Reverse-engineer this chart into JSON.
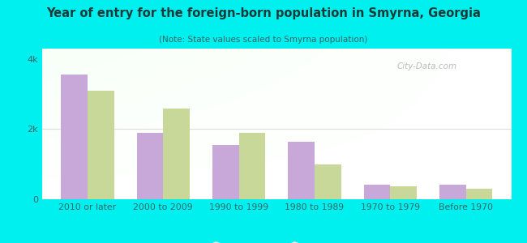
{
  "title": "Year of entry for the foreign-born population in Smyrna, Georgia",
  "subtitle": "(Note: State values scaled to Smyrna population)",
  "categories": [
    "2010 or later",
    "2000 to 2009",
    "1990 to 1999",
    "1980 to 1989",
    "1970 to 1979",
    "Before 1970"
  ],
  "smyrna_values": [
    3550,
    1900,
    1550,
    1650,
    420,
    420
  ],
  "georgia_values": [
    3100,
    2580,
    1900,
    1000,
    360,
    300
  ],
  "smyrna_color": "#c8a8d8",
  "georgia_color": "#c8d898",
  "ylim": [
    0,
    4300
  ],
  "ytick_vals": [
    0,
    2000,
    4000
  ],
  "ytick_labels": [
    "0",
    "2k",
    "4k"
  ],
  "background_color": "#00f0f0",
  "title_color": "#1a3a3a",
  "subtitle_color": "#336666",
  "tick_color": "#336666",
  "grid_color": "#dddddd",
  "bar_width": 0.35,
  "figsize": [
    6.5,
    3.0
  ],
  "dpi": 100
}
